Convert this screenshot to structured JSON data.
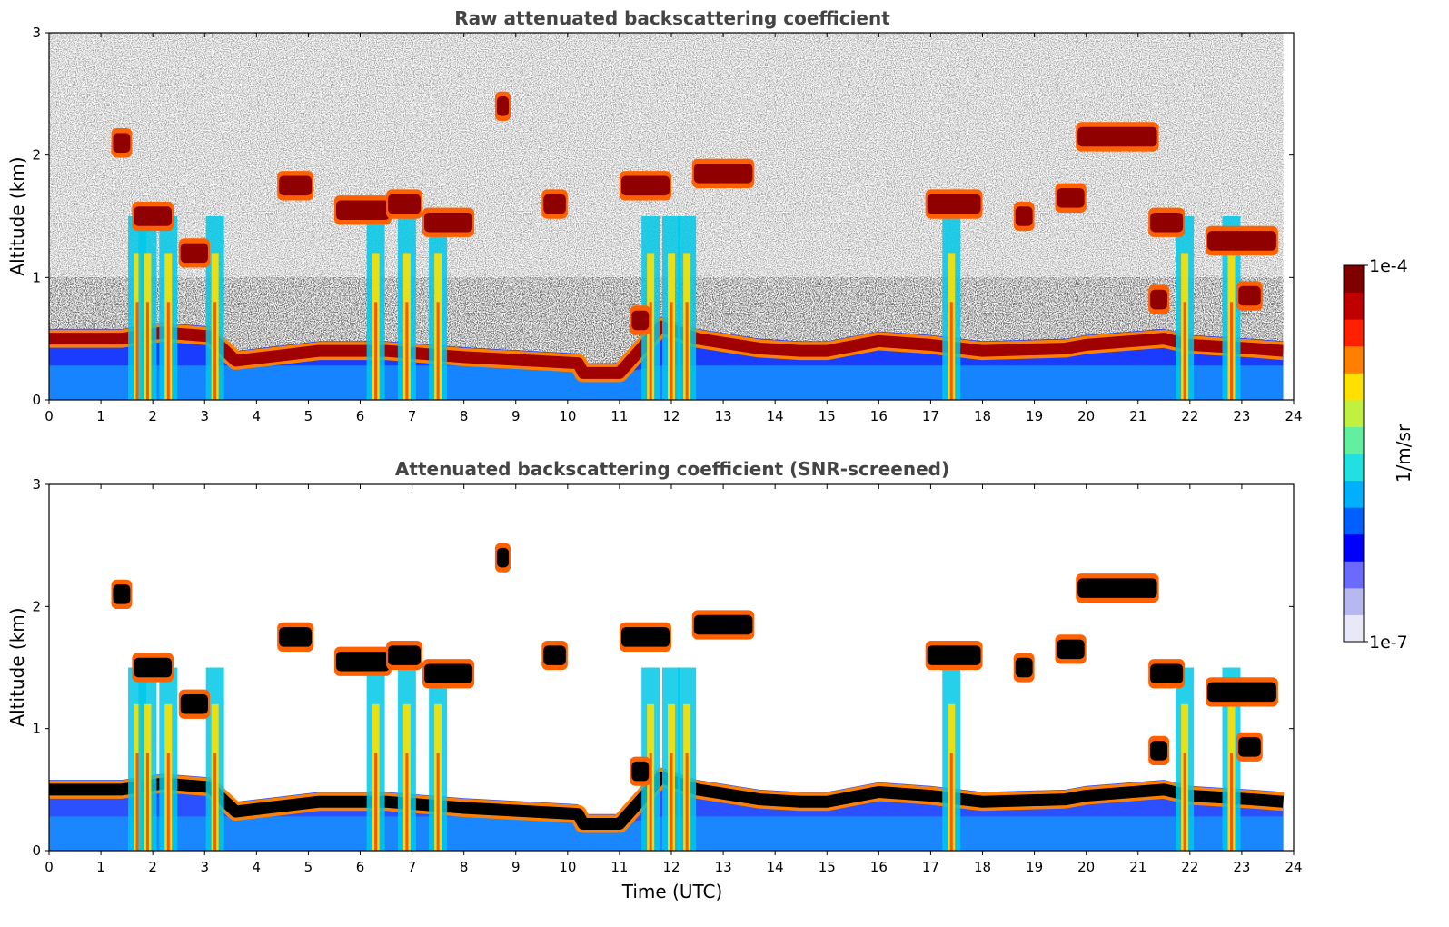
{
  "chart_data": [
    {
      "type": "heatmap",
      "title": "Raw attenuated backscattering coefficient",
      "xlabel": "",
      "ylabel": "Altitude (km)",
      "xlim": [
        0,
        24
      ],
      "ylim": [
        0,
        3
      ],
      "x_ticks": [
        "0",
        "1",
        "2",
        "3",
        "4",
        "5",
        "6",
        "7",
        "8",
        "9",
        "10",
        "11",
        "12",
        "13",
        "14",
        "15",
        "16",
        "17",
        "18",
        "19",
        "20",
        "21",
        "22",
        "23",
        "24"
      ],
      "y_ticks": [
        "0",
        "1",
        "2",
        "3"
      ],
      "noise_above_boundary_layer": true,
      "features": [
        {
          "kind": "boundary_layer_top",
          "points": [
            [
              0,
              0.5
            ],
            [
              1.4,
              0.5
            ],
            [
              2.2,
              0.55
            ],
            [
              3.1,
              0.52
            ],
            [
              3.6,
              0.32
            ],
            [
              4.4,
              0.36
            ],
            [
              5.2,
              0.4
            ],
            [
              6.5,
              0.4
            ],
            [
              8,
              0.35
            ],
            [
              10.2,
              0.3
            ],
            [
              10.3,
              0.22
            ],
            [
              11,
              0.22
            ],
            [
              11.8,
              0.6
            ],
            [
              12.5,
              0.5
            ],
            [
              13.7,
              0.42
            ],
            [
              14.5,
              0.4
            ],
            [
              15,
              0.4
            ],
            [
              16,
              0.48
            ],
            [
              17,
              0.45
            ],
            [
              18,
              0.4
            ],
            [
              19.6,
              0.42
            ],
            [
              20,
              0.45
            ],
            [
              21.5,
              0.5
            ],
            [
              22,
              0.45
            ],
            [
              23.2,
              0.42
            ],
            [
              23.8,
              0.4
            ]
          ]
        },
        {
          "kind": "cloud_layer",
          "segments": [
            [
              4.4,
              5.1,
              1.75
            ],
            [
              5.5,
              6.6,
              1.55
            ],
            [
              6.5,
              7.2,
              1.6
            ],
            [
              7.2,
              8.2,
              1.45
            ],
            [
              8.6,
              8.9,
              2.4
            ],
            [
              9.5,
              10.0,
              1.6
            ],
            [
              11.0,
              12.0,
              1.75
            ],
            [
              12.4,
              13.6,
              1.85
            ],
            [
              16.9,
              18.0,
              1.6
            ],
            [
              18.6,
              19.0,
              1.5
            ],
            [
              19.8,
              21.4,
              2.15
            ],
            [
              19.4,
              20.0,
              1.65
            ],
            [
              21.2,
              21.9,
              1.45
            ],
            [
              22.3,
              23.7,
              1.3
            ],
            [
              2.5,
              3.1,
              1.2
            ],
            [
              1.2,
              1.6,
              2.1
            ],
            [
              1.6,
              2.4,
              1.5
            ],
            [
              21.2,
              21.6,
              0.82
            ],
            [
              22.9,
              23.4,
              0.85
            ],
            [
              11.2,
              11.6,
              0.65
            ]
          ]
        },
        {
          "kind": "precipitation_streak",
          "x": [
            1.7,
            1.9,
            2.3,
            3.2,
            6.3,
            6.9,
            7.5,
            11.6,
            12.0,
            12.3,
            17.4,
            21.9,
            22.8
          ]
        }
      ]
    },
    {
      "type": "heatmap",
      "title": "Attenuated backscattering coefficient (SNR-screened)",
      "xlabel": "Time (UTC)",
      "ylabel": "Altitude (km)",
      "xlim": [
        0,
        24
      ],
      "ylim": [
        0,
        3
      ],
      "x_ticks": [
        "0",
        "1",
        "2",
        "3",
        "4",
        "5",
        "6",
        "7",
        "8",
        "9",
        "10",
        "11",
        "12",
        "13",
        "14",
        "15",
        "16",
        "17",
        "18",
        "19",
        "20",
        "21",
        "22",
        "23",
        "24"
      ],
      "y_ticks": [
        "0",
        "1",
        "2",
        "3"
      ],
      "noise_above_boundary_layer": false,
      "saturated_color": "#000000"
    }
  ],
  "colorbar": {
    "label": "1/m/sr",
    "max_label": "1e-4",
    "min_label": "1e-7",
    "scale": "log",
    "colormap": [
      "#e8e8f8",
      "#b8b8f0",
      "#6a6aff",
      "#0000ff",
      "#0060ff",
      "#00b0ff",
      "#20e0e0",
      "#60f0a0",
      "#c0f040",
      "#ffe000",
      "#ff8000",
      "#ff2000",
      "#c00000",
      "#800000"
    ]
  }
}
